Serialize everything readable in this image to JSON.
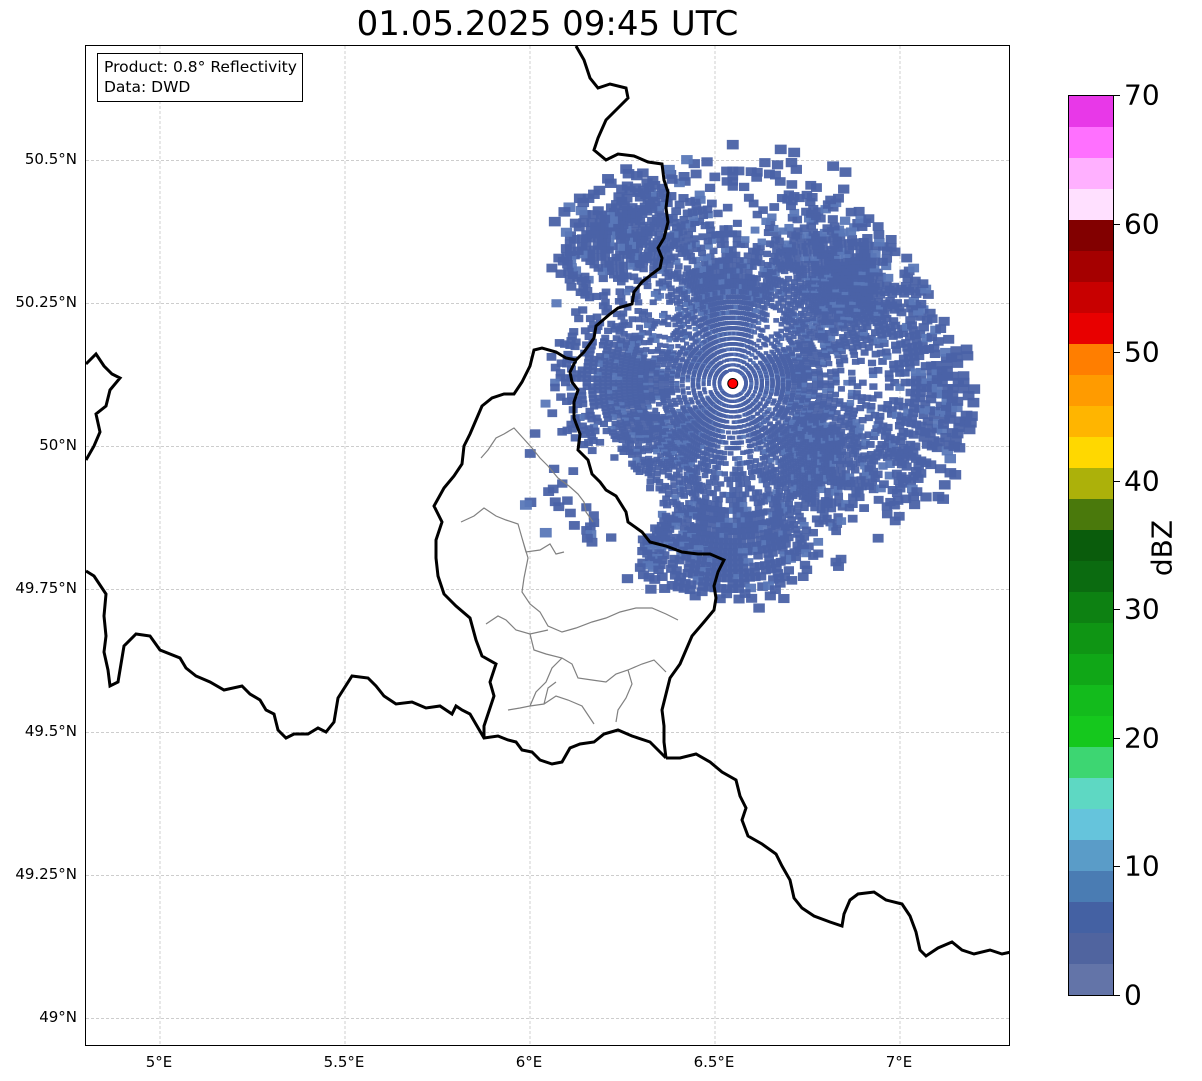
{
  "title": "01.05.2025 09:45 UTC",
  "info": {
    "product": "Product: 0.8° Reflectivity",
    "data": "Data: DWD"
  },
  "axes": {
    "lat_labels": [
      "50.5°N",
      "50.25°N",
      "50°N",
      "49.75°N",
      "49.5°N",
      "49.25°N",
      "49°N"
    ],
    "lat_values": [
      50.5,
      50.25,
      50.0,
      49.75,
      49.5,
      49.25,
      49.0
    ],
    "lon_labels": [
      "5°E",
      "5.5°E",
      "6°E",
      "6.5°E",
      "7°E"
    ],
    "lon_values": [
      5.0,
      5.5,
      6.0,
      6.5,
      7.0
    ],
    "lon_range": [
      4.8,
      7.3
    ],
    "lat_range": [
      48.95,
      50.7
    ]
  },
  "radar": {
    "site_lon": 6.548,
    "site_lat": 50.11,
    "site_color": "#ff0000",
    "range_deg_lon": 0.66,
    "range_deg_lat": 0.42,
    "echo_color": "#4a62a6",
    "echo_color_light": "#5a78b8"
  },
  "colorbar": {
    "label": "dBZ",
    "min": 0,
    "max": 70,
    "tick_labels": [
      "0",
      "10",
      "20",
      "30",
      "40",
      "50",
      "60",
      "70"
    ],
    "tick_values": [
      0,
      10,
      20,
      30,
      40,
      50,
      60,
      70
    ],
    "colors": [
      "#6374a8",
      "#50649f",
      "#4461a3",
      "#4a7cb3",
      "#5a9cc8",
      "#65c4dc",
      "#5ed8c3",
      "#3dd672",
      "#15c81d",
      "#13bb1c",
      "#10a717",
      "#0f9514",
      "#0d8112",
      "#0b6b10",
      "#0a5c0c",
      "#4a790c",
      "#acb10a",
      "#ffd800",
      "#ffb500",
      "#ff9b00",
      "#ff7e00",
      "#e80000",
      "#c80000",
      "#a50000",
      "#820000",
      "#ffe0ff",
      "#ffb0ff",
      "#ff70ff",
      "#e838e8"
    ]
  }
}
